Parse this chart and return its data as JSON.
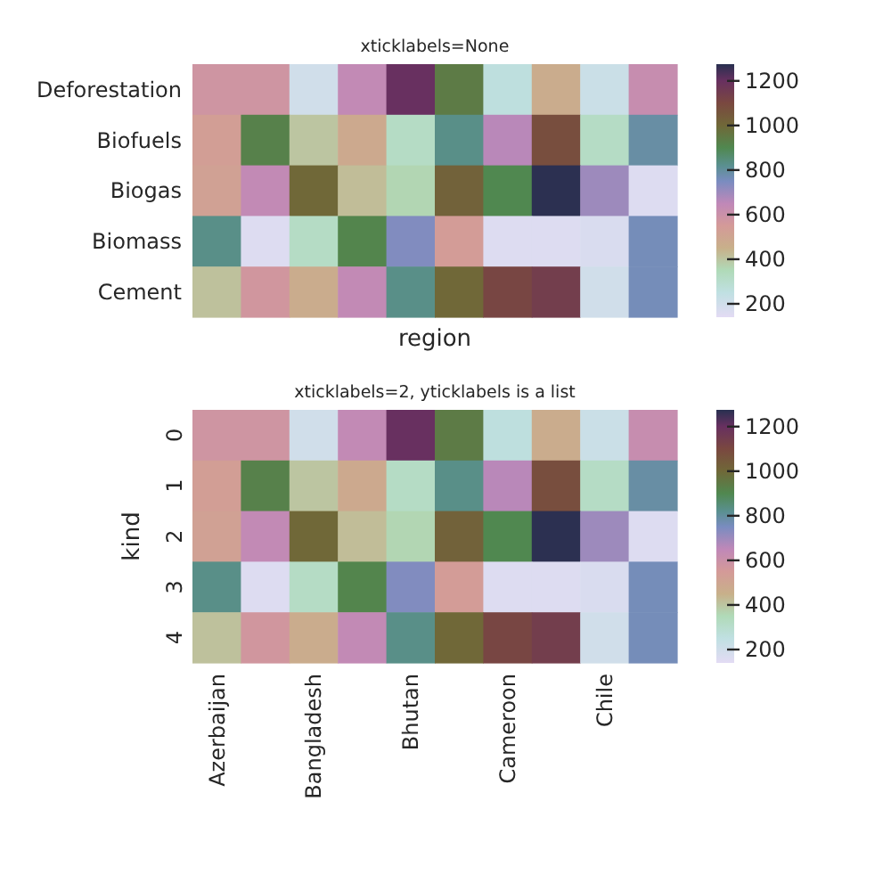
{
  "chart_data": [
    {
      "type": "heatmap",
      "title": "xticklabels=None",
      "xlabel": "region",
      "categories": [
        null,
        null,
        null,
        null,
        null,
        null,
        null,
        null,
        null,
        null
      ],
      "y_categories": [
        "Deforestation",
        "Biofuels",
        "Biogas",
        "Biomass",
        "Cement"
      ],
      "tick_labels": "y",
      "cells": [
        [
          580,
          580,
          200,
          640,
          1200,
          940,
          260,
          470,
          220,
          620
        ],
        [
          530,
          920,
          400,
          480,
          320,
          830,
          660,
          1080,
          320,
          790
        ],
        [
          520,
          640,
          1000,
          420,
          360,
          1020,
          900,
          1270,
          700,
          160
        ],
        [
          830,
          160,
          320,
          910,
          740,
          540,
          160,
          160,
          170,
          760
        ],
        [
          410,
          570,
          470,
          640,
          830,
          1000,
          1110,
          1140,
          200,
          760
        ]
      ],
      "clim": [
        140,
        1275
      ],
      "cticks": [
        200,
        400,
        600,
        800,
        1000,
        1200
      ]
    },
    {
      "type": "heatmap",
      "title": "xticklabels=2, yticklabels is a list",
      "ylabel": "kind",
      "categories": [
        "Azerbaijan",
        null,
        "Bangladesh",
        null,
        "Bhutan",
        null,
        "Cameroon",
        null,
        "Chile",
        null
      ],
      "y_categories": [
        "0",
        "1",
        "2",
        "3",
        "4"
      ],
      "cells": [
        [
          580,
          580,
          200,
          640,
          1200,
          940,
          260,
          470,
          220,
          620
        ],
        [
          530,
          920,
          400,
          480,
          320,
          830,
          660,
          1080,
          320,
          790
        ],
        [
          520,
          640,
          1000,
          420,
          360,
          1020,
          900,
          1270,
          700,
          160
        ],
        [
          830,
          160,
          320,
          910,
          740,
          540,
          160,
          160,
          170,
          760
        ],
        [
          410,
          570,
          470,
          640,
          830,
          1000,
          1110,
          1140,
          200,
          760
        ]
      ],
      "clim": [
        140,
        1275
      ],
      "cticks": [
        200,
        400,
        600,
        800,
        1000,
        1200
      ]
    }
  ]
}
